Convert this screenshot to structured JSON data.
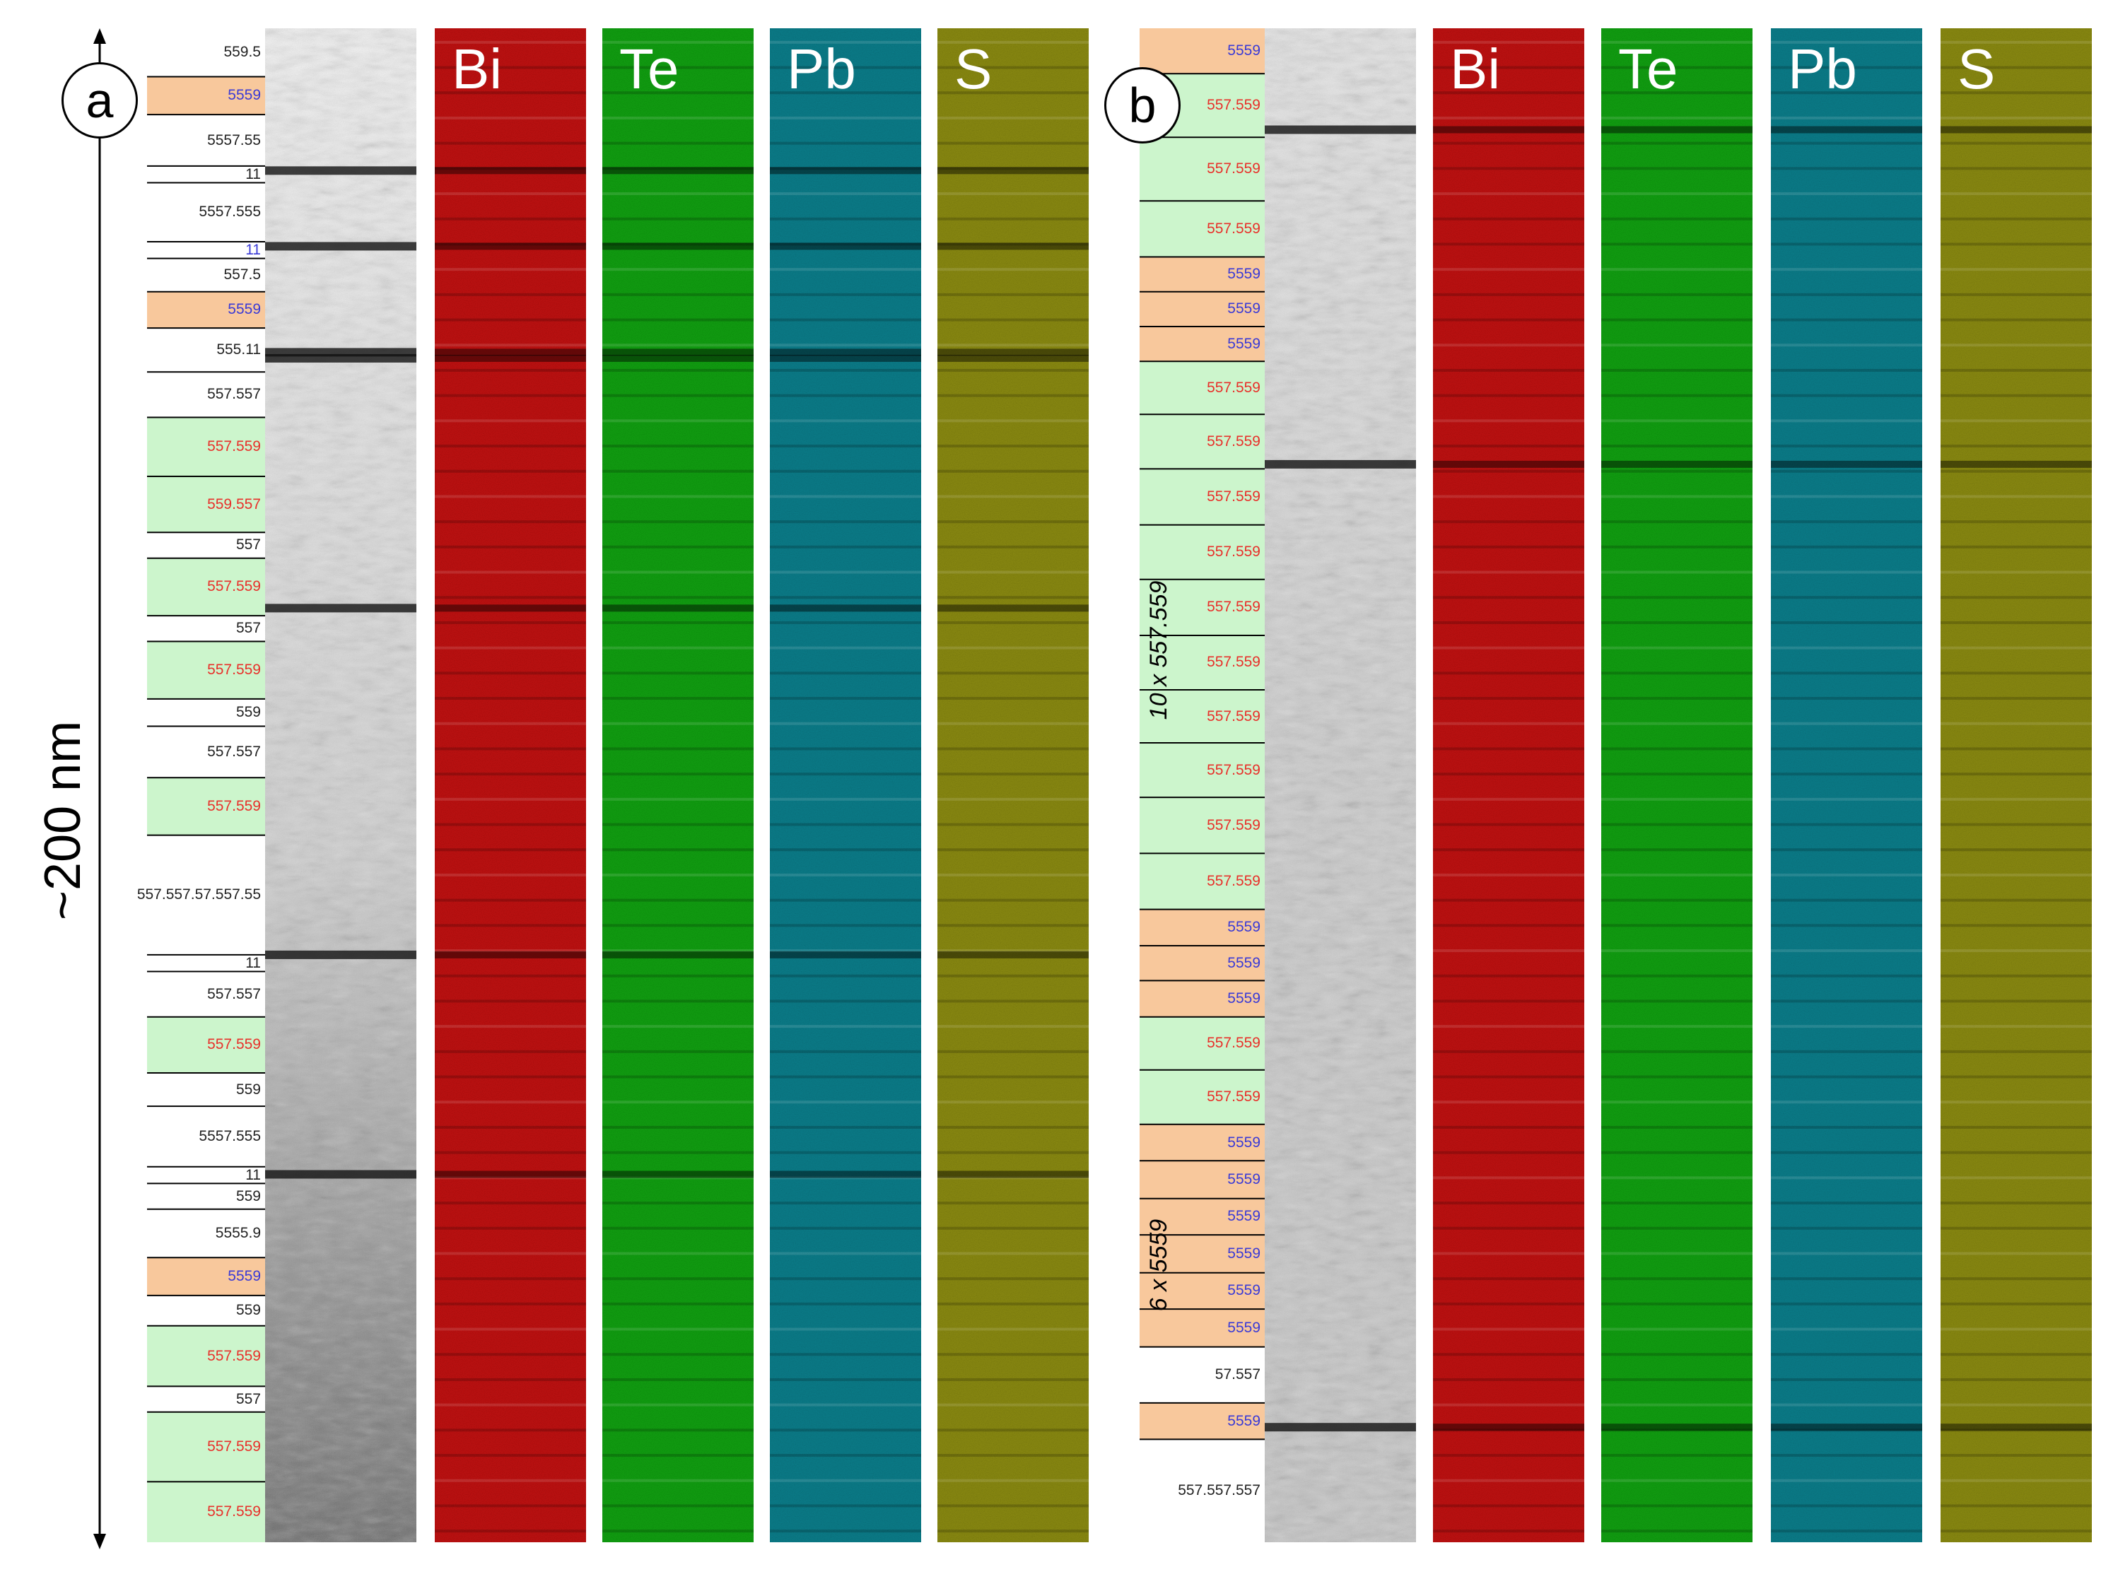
{
  "figure": {
    "scale_label": "~200 nm",
    "colors": {
      "stripe_orange": "#f8c89c",
      "stripe_green": "#ccf5cc",
      "label_red": "#e8302a",
      "label_blue": "#3a3ad6",
      "label_black": "#222222",
      "bi": "#c01010",
      "te": "#10a010",
      "pb": "#0a7d8a",
      "s": "#8a8a10"
    }
  },
  "panel_a": {
    "badge": "a",
    "maps": [
      "Bi",
      "Te",
      "Pb",
      "S"
    ],
    "segments": [
      {
        "label": "559.5",
        "color": "black",
        "bg": "none",
        "top": 0.0,
        "bottom": 0.032
      },
      {
        "label": "5559",
        "color": "blue",
        "bg": "orange",
        "top": 0.032,
        "bottom": 0.057
      },
      {
        "label": "5557.55",
        "color": "black",
        "bg": "none",
        "top": 0.057,
        "bottom": 0.091
      },
      {
        "label": "11",
        "color": "black",
        "bg": "none",
        "top": 0.091,
        "bottom": 0.102
      },
      {
        "label": "5557.555",
        "color": "black",
        "bg": "none",
        "top": 0.102,
        "bottom": 0.141
      },
      {
        "label": "11",
        "color": "blue",
        "bg": "none",
        "top": 0.141,
        "bottom": 0.152
      },
      {
        "label": "557.5",
        "color": "black",
        "bg": "none",
        "top": 0.152,
        "bottom": 0.174
      },
      {
        "label": "5559",
        "color": "blue",
        "bg": "orange",
        "top": 0.174,
        "bottom": 0.198
      },
      {
        "label": "555.11",
        "color": "black",
        "bg": "none",
        "top": 0.198,
        "bottom": 0.227
      },
      {
        "label": "557.557",
        "color": "black",
        "bg": "none",
        "top": 0.227,
        "bottom": 0.257
      },
      {
        "label": "557.559",
        "color": "red",
        "bg": "green",
        "top": 0.257,
        "bottom": 0.296
      },
      {
        "label": "559.557",
        "color": "red",
        "bg": "green",
        "top": 0.296,
        "bottom": 0.333
      },
      {
        "label": "557",
        "color": "black",
        "bg": "none",
        "top": 0.333,
        "bottom": 0.35
      },
      {
        "label": "557.559",
        "color": "red",
        "bg": "green",
        "top": 0.35,
        "bottom": 0.388
      },
      {
        "label": "557",
        "color": "black",
        "bg": "none",
        "top": 0.388,
        "bottom": 0.405
      },
      {
        "label": "557.559",
        "color": "red",
        "bg": "green",
        "top": 0.405,
        "bottom": 0.443
      },
      {
        "label": "559",
        "color": "black",
        "bg": "none",
        "top": 0.443,
        "bottom": 0.461
      },
      {
        "label": "557.557",
        "color": "black",
        "bg": "none",
        "top": 0.461,
        "bottom": 0.495
      },
      {
        "label": "557.559",
        "color": "red",
        "bg": "green",
        "top": 0.495,
        "bottom": 0.533
      },
      {
        "label": "557.557.57.557.55",
        "color": "black",
        "bg": "none",
        "top": 0.533,
        "bottom": 0.612
      },
      {
        "label": "11",
        "color": "black",
        "bg": "none",
        "top": 0.612,
        "bottom": 0.623
      },
      {
        "label": "557.557",
        "color": "black",
        "bg": "none",
        "top": 0.623,
        "bottom": 0.653
      },
      {
        "label": "557.559",
        "color": "red",
        "bg": "green",
        "top": 0.653,
        "bottom": 0.69
      },
      {
        "label": "559",
        "color": "black",
        "bg": "none",
        "top": 0.69,
        "bottom": 0.712
      },
      {
        "label": "5557.555",
        "color": "black",
        "bg": "none",
        "top": 0.712,
        "bottom": 0.752
      },
      {
        "label": "11",
        "color": "black",
        "bg": "none",
        "top": 0.752,
        "bottom": 0.763
      },
      {
        "label": "559",
        "color": "black",
        "bg": "none",
        "top": 0.763,
        "bottom": 0.78
      },
      {
        "label": "5555.9",
        "color": "black",
        "bg": "none",
        "top": 0.78,
        "bottom": 0.812
      },
      {
        "label": "5559",
        "color": "blue",
        "bg": "orange",
        "top": 0.812,
        "bottom": 0.837
      },
      {
        "label": "559",
        "color": "black",
        "bg": "none",
        "top": 0.837,
        "bottom": 0.857
      },
      {
        "label": "557.559",
        "color": "red",
        "bg": "green",
        "top": 0.857,
        "bottom": 0.897
      },
      {
        "label": "557",
        "color": "black",
        "bg": "none",
        "top": 0.897,
        "bottom": 0.914
      },
      {
        "label": "557.559",
        "color": "red",
        "bg": "green",
        "top": 0.914,
        "bottom": 0.96
      },
      {
        "label": "557.559",
        "color": "red",
        "bg": "green",
        "top": 0.96,
        "bottom": 1.0
      }
    ],
    "dark_bands": [
      0.094,
      0.144,
      0.214,
      0.218,
      0.383,
      0.612,
      0.757
    ]
  },
  "panel_b": {
    "badge": "b",
    "maps": [
      "Bi",
      "Te",
      "Pb",
      "S"
    ],
    "group_labels": [
      "10 x 557.559",
      "6 x 5559"
    ],
    "segments": [
      {
        "label": "5559",
        "color": "blue",
        "bg": "orange",
        "top": 0.0,
        "bottom": 0.03
      },
      {
        "label": "557.559",
        "color": "red",
        "bg": "green",
        "top": 0.03,
        "bottom": 0.072
      },
      {
        "label": "557.559",
        "color": "red",
        "bg": "green",
        "top": 0.072,
        "bottom": 0.114
      },
      {
        "label": "557.559",
        "color": "red",
        "bg": "green",
        "top": 0.114,
        "bottom": 0.151
      },
      {
        "label": "5559",
        "color": "blue",
        "bg": "orange",
        "top": 0.151,
        "bottom": 0.174
      },
      {
        "label": "5559",
        "color": "blue",
        "bg": "orange",
        "top": 0.174,
        "bottom": 0.197
      },
      {
        "label": "5559",
        "color": "blue",
        "bg": "orange",
        "top": 0.197,
        "bottom": 0.22
      },
      {
        "label": "557.559",
        "color": "red",
        "bg": "green",
        "top": 0.22,
        "bottom": 0.255
      },
      {
        "label": "557.559",
        "color": "red",
        "bg": "green",
        "top": 0.255,
        "bottom": 0.291
      },
      {
        "label": "557.559",
        "color": "red",
        "bg": "green",
        "top": 0.291,
        "bottom": 0.328
      },
      {
        "label": "557.559",
        "color": "red",
        "bg": "green",
        "top": 0.328,
        "bottom": 0.364
      },
      {
        "label": "557.559",
        "color": "red",
        "bg": "green",
        "top": 0.364,
        "bottom": 0.401
      },
      {
        "label": "557.559",
        "color": "red",
        "bg": "green",
        "top": 0.401,
        "bottom": 0.437
      },
      {
        "label": "557.559",
        "color": "red",
        "bg": "green",
        "top": 0.437,
        "bottom": 0.472
      },
      {
        "label": "557.559",
        "color": "red",
        "bg": "green",
        "top": 0.472,
        "bottom": 0.508
      },
      {
        "label": "557.559",
        "color": "red",
        "bg": "green",
        "top": 0.508,
        "bottom": 0.545
      },
      {
        "label": "557.559",
        "color": "red",
        "bg": "green",
        "top": 0.545,
        "bottom": 0.582
      },
      {
        "label": "5559",
        "color": "blue",
        "bg": "orange",
        "top": 0.582,
        "bottom": 0.606
      },
      {
        "label": "5559",
        "color": "blue",
        "bg": "orange",
        "top": 0.606,
        "bottom": 0.629
      },
      {
        "label": "5559",
        "color": "blue",
        "bg": "orange",
        "top": 0.629,
        "bottom": 0.653
      },
      {
        "label": "557.559",
        "color": "red",
        "bg": "green",
        "top": 0.653,
        "bottom": 0.688
      },
      {
        "label": "557.559",
        "color": "red",
        "bg": "green",
        "top": 0.688,
        "bottom": 0.724
      },
      {
        "label": "5559",
        "color": "blue",
        "bg": "orange",
        "top": 0.724,
        "bottom": 0.748
      },
      {
        "label": "5559",
        "color": "blue",
        "bg": "orange",
        "top": 0.748,
        "bottom": 0.773
      },
      {
        "label": "5559",
        "color": "blue",
        "bg": "orange",
        "top": 0.773,
        "bottom": 0.797
      },
      {
        "label": "5559",
        "color": "blue",
        "bg": "orange",
        "top": 0.797,
        "bottom": 0.822
      },
      {
        "label": "5559",
        "color": "blue",
        "bg": "orange",
        "top": 0.822,
        "bottom": 0.846
      },
      {
        "label": "5559",
        "color": "blue",
        "bg": "orange",
        "top": 0.846,
        "bottom": 0.871
      },
      {
        "label": "57.557",
        "color": "black",
        "bg": "none",
        "top": 0.871,
        "bottom": 0.908
      },
      {
        "label": "5559",
        "color": "blue",
        "bg": "orange",
        "top": 0.908,
        "bottom": 0.932
      },
      {
        "label": "557.557.557",
        "color": "black",
        "bg": "none",
        "top": 0.932,
        "bottom": 1.0
      }
    ],
    "dark_bands": [
      0.067,
      0.288,
      0.924
    ]
  }
}
